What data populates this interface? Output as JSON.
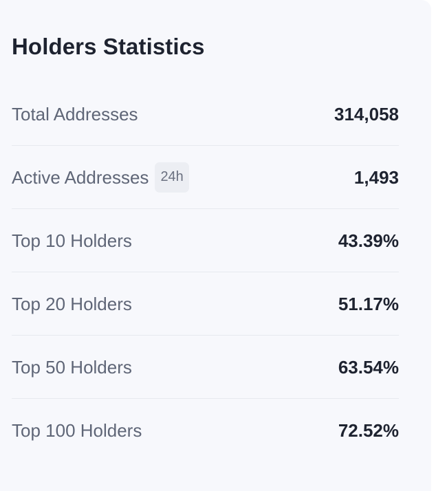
{
  "card": {
    "title": "Holders Statistics",
    "rows": [
      {
        "label": "Total Addresses",
        "value": "314,058",
        "badge": ""
      },
      {
        "label": "Active Addresses",
        "value": "1,493",
        "badge": "24h"
      },
      {
        "label": "Top 10 Holders",
        "value": "43.39%",
        "badge": ""
      },
      {
        "label": "Top 20 Holders",
        "value": "51.17%",
        "badge": ""
      },
      {
        "label": "Top 50 Holders",
        "value": "63.54%",
        "badge": ""
      },
      {
        "label": "Top 100 Holders",
        "value": "72.52%",
        "badge": ""
      }
    ]
  },
  "colors": {
    "card_background": "#f7f8fc",
    "title_text": "#1e2330",
    "label_text": "#5f6677",
    "divider": "#e7e9ef",
    "badge_background": "#eceef3"
  }
}
